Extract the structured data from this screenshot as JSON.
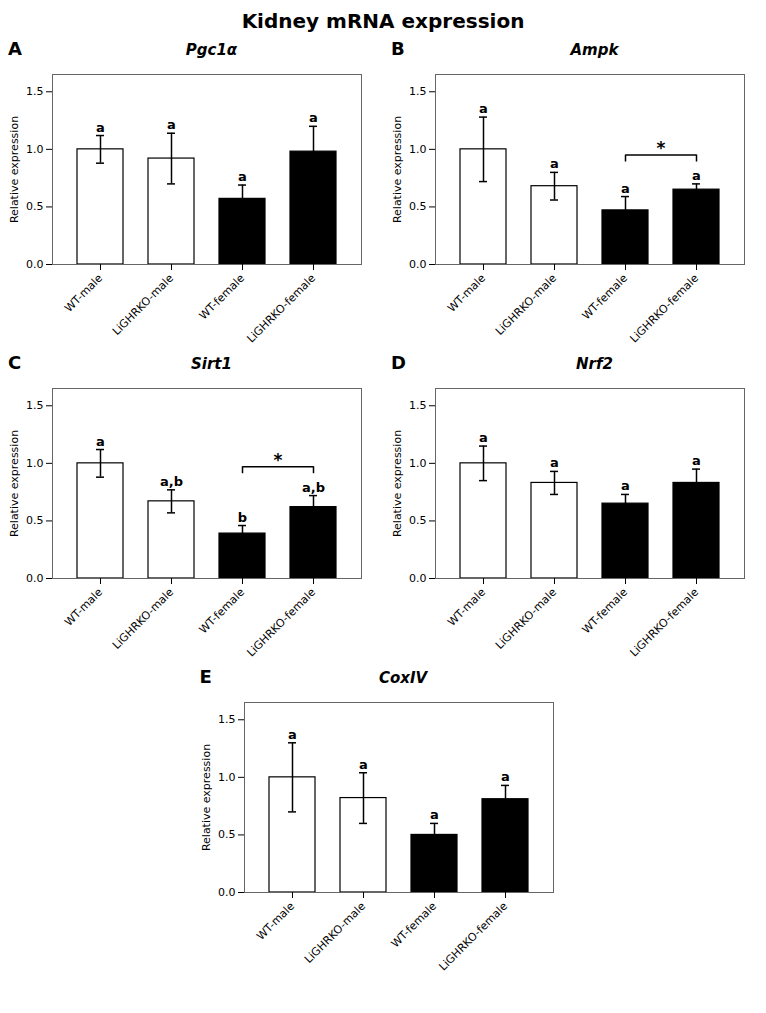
{
  "title": "Kidney mRNA expression",
  "chart_data": [
    {
      "type": "bar",
      "panel": "A",
      "title": "Pgc1α",
      "categories": [
        "WT-male",
        "LiGHRKO-male",
        "WT-female",
        "LiGHRKO-female"
      ],
      "values": [
        1.0,
        0.92,
        0.57,
        0.98
      ],
      "errors": [
        0.12,
        0.22,
        0.12,
        0.22
      ],
      "letters": [
        "a",
        "a",
        "a",
        "a"
      ],
      "colors": [
        "white",
        "white",
        "black",
        "black"
      ],
      "ylabel": "Relative expression",
      "ylim": [
        0.0,
        1.65
      ],
      "yticks": [
        {
          "value": 0.0,
          "label": "0.0"
        },
        0.5,
        {
          "value": 1.0,
          "label": "1.0"
        },
        1.5
      ]
    },
    {
      "type": "bar",
      "panel": "B",
      "title": "Ampk",
      "categories": [
        "WT-male",
        "LiGHRKO-male",
        "WT-female",
        "LiGHRKO-female"
      ],
      "values": [
        1.0,
        0.68,
        0.47,
        0.65
      ],
      "errors": [
        0.28,
        0.12,
        0.12,
        0.05
      ],
      "letters": [
        "a",
        "a",
        "a",
        "a"
      ],
      "bracket": {
        "from": "WT-female",
        "to": "LiGHRKO-female",
        "label": "*"
      },
      "colors": [
        "white",
        "white",
        "black",
        "black"
      ],
      "ylabel": "Relative expression",
      "ylim": [
        0.0,
        1.65
      ],
      "yticks": [
        {
          "value": 0.0,
          "label": "0.0"
        },
        0.5,
        {
          "value": 1.0,
          "label": "1.0"
        },
        1.5
      ]
    },
    {
      "type": "bar",
      "panel": "C",
      "title": "Sirt1",
      "categories": [
        "WT-male",
        "LiGHRKO-male",
        "WT-female",
        "LiGHRKO-female"
      ],
      "values": [
        1.0,
        0.67,
        0.39,
        0.62
      ],
      "errors": [
        0.12,
        0.1,
        0.07,
        0.1
      ],
      "letters": [
        "a",
        "a,b",
        "b",
        "a,b"
      ],
      "bracket": {
        "from": "WT-female",
        "to": "LiGHRKO-female",
        "label": "*"
      },
      "colors": [
        "white",
        "white",
        "black",
        "black"
      ],
      "ylabel": "Relative expression",
      "ylim": [
        0.0,
        1.65
      ],
      "yticks": [
        {
          "value": 0.0,
          "label": "0.0"
        },
        0.5,
        {
          "value": 1.0,
          "label": "1.0"
        },
        1.5
      ]
    },
    {
      "type": "bar",
      "panel": "D",
      "title": "Nrf2",
      "categories": [
        "WT-male",
        "LiGHRKO-male",
        "WT-female",
        "LiGHRKO-female"
      ],
      "values": [
        1.0,
        0.83,
        0.65,
        0.83
      ],
      "errors": [
        0.15,
        0.1,
        0.08,
        0.12
      ],
      "letters": [
        "a",
        "a",
        "a",
        "a"
      ],
      "colors": [
        "white",
        "white",
        "black",
        "black"
      ],
      "ylabel": "Relative expression",
      "ylim": [
        0.0,
        1.65
      ],
      "yticks": [
        {
          "value": 0.0,
          "label": "0.0"
        },
        0.5,
        {
          "value": 1.0,
          "label": "1.0"
        },
        1.5
      ]
    },
    {
      "type": "bar",
      "panel": "E",
      "title": "CoxIV",
      "categories": [
        "WT-male",
        "LiGHRKO-male",
        "WT-female",
        "LiGHRKO-female"
      ],
      "values": [
        1.0,
        0.82,
        0.5,
        0.81
      ],
      "errors": [
        0.3,
        0.22,
        0.1,
        0.12
      ],
      "letters": [
        "a",
        "a",
        "a",
        "a"
      ],
      "colors": [
        "white",
        "white",
        "black",
        "black"
      ],
      "ylabel": "Relative expression",
      "ylim": [
        0.0,
        1.65
      ],
      "yticks": [
        {
          "value": 0.0,
          "label": "0.0"
        },
        0.5,
        {
          "value": 1.0,
          "label": "1.0"
        },
        1.5
      ]
    }
  ]
}
